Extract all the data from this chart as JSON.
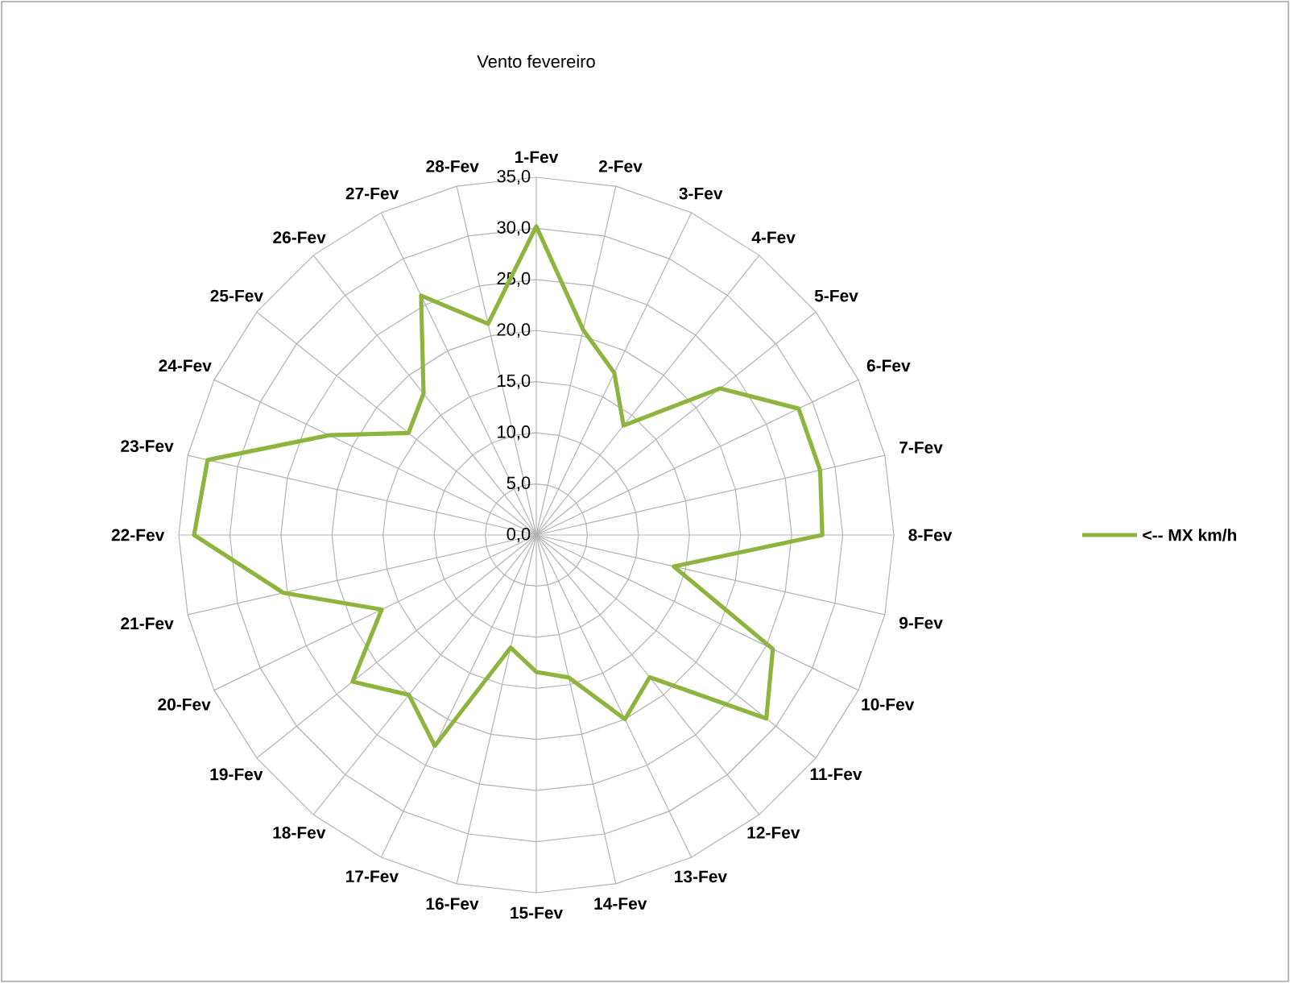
{
  "chart_data": {
    "type": "radar",
    "title": "Vento fevereiro",
    "categories": [
      "1-Fev",
      "2-Fev",
      "3-Fev",
      "4-Fev",
      "5-Fev",
      "6-Fev",
      "7-Fev",
      "8-Fev",
      "9-Fev",
      "10-Fev",
      "11-Fev",
      "12-Fev",
      "13-Fev",
      "14-Fev",
      "15-Fev",
      "16-Fev",
      "17-Fev",
      "18-Fev",
      "19-Fev",
      "20-Fev",
      "21-Fev",
      "22-Fev",
      "23-Fev",
      "24-Fev",
      "25-Fev",
      "26-Fev",
      "27-Fev",
      "28-Fev"
    ],
    "series": [
      {
        "name": "<-- MX km/h",
        "color": "#8db43e",
        "values": [
          30.2,
          20.6,
          17.6,
          13.7,
          23,
          28.5,
          28.5,
          28,
          13.8,
          25.7,
          28.8,
          17.8,
          20,
          14.3,
          13.4,
          11.3,
          22.9,
          20,
          23,
          16.8,
          25.4,
          33.5,
          33,
          22.5,
          16,
          17.7,
          26,
          21.2
        ]
      }
    ],
    "ylim": [
      0,
      35
    ],
    "yticks": [
      {
        "value": 0,
        "label": "0,0"
      },
      {
        "value": 5,
        "label": "5,0"
      },
      {
        "value": 10,
        "label": "10,0"
      },
      {
        "value": 15,
        "label": "15,0"
      },
      {
        "value": 20,
        "label": "20,0"
      },
      {
        "value": 25,
        "label": "25,0"
      },
      {
        "value": 30,
        "label": "30,0"
      },
      {
        "value": 35,
        "label": "35,0"
      }
    ],
    "grid": true,
    "legend": "right"
  }
}
